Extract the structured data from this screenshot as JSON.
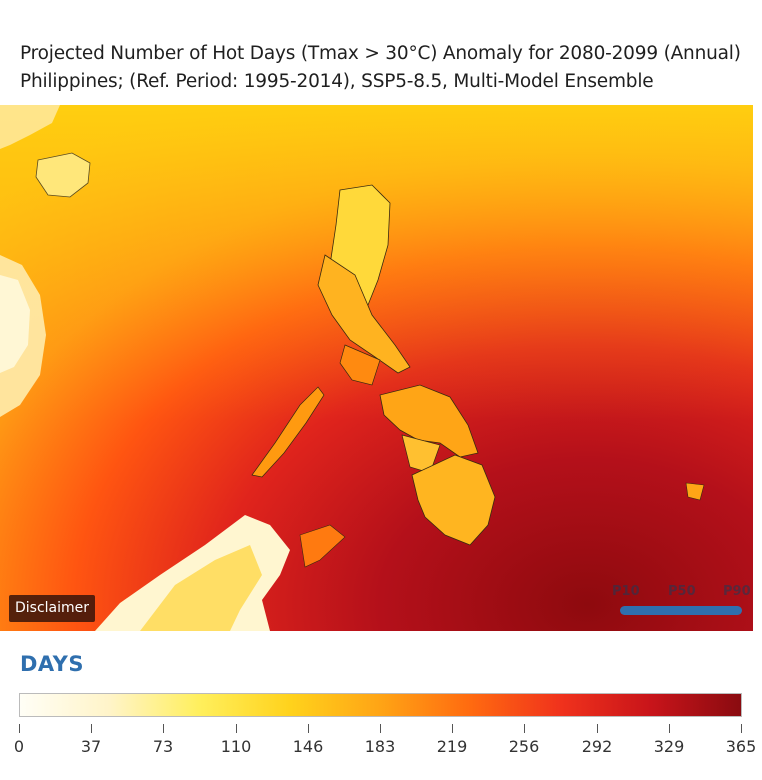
{
  "title": {
    "line1": "Projected Number of Hot Days (Tmax > 30°C) Anomaly for 2080-2099 (Annual)",
    "line2": "Philippines; (Ref. Period: 1995-2014), SSP5-8.5, Multi-Model Ensemble"
  },
  "map": {
    "disclaimer_label": "Disclaimer",
    "percentiles": [
      "P10",
      "P50",
      "P90"
    ],
    "selected_percentile": "P50"
  },
  "legend": {
    "title": "DAYS",
    "ticks": [
      "0",
      "37",
      "73",
      "110",
      "146",
      "183",
      "219",
      "256",
      "292",
      "329",
      "365"
    ],
    "range": [
      0,
      365
    ],
    "colors": [
      "#fffef6",
      "#fff4c8",
      "#ffef5c",
      "#ffd21c",
      "#ffa415",
      "#ff6a10",
      "#f0321c",
      "#c8141a",
      "#8a0b10"
    ]
  }
}
